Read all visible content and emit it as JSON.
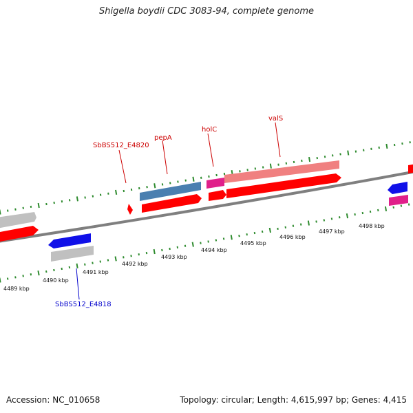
{
  "title": "Shigella boydii CDC 3083-94, complete genome",
  "footer": {
    "accession": "Accession: NC_010658",
    "summary": "Topology: circular; Length: 4,615,997 bp; Genes: 4,415"
  },
  "colors": {
    "backbone": "#7f7f7f",
    "tick": "#2e8b2e",
    "cds": "#ff0000",
    "cds_light": "#f08080",
    "trna": "#e0208a",
    "pseudo": "#c0c0c0",
    "blue_gene": "#1010e8",
    "steel_gene": "#4a7fb0",
    "label_red": "#cc0000",
    "label_blue": "#0000cc"
  },
  "scale_labels": [
    "4489 kbp",
    "4490 kbp",
    "4491 kbp",
    "4492 kbp",
    "4493 kbp",
    "4494 kbp",
    "4495 kbp",
    "4496 kbp",
    "4497 kbp",
    "4498 kbp"
  ],
  "gene_labels": {
    "e4820": "SbBS512_E4820",
    "pepA": "pepA",
    "holC": "holC",
    "valS": "valS",
    "e4818": "SbBS512_E4818"
  }
}
